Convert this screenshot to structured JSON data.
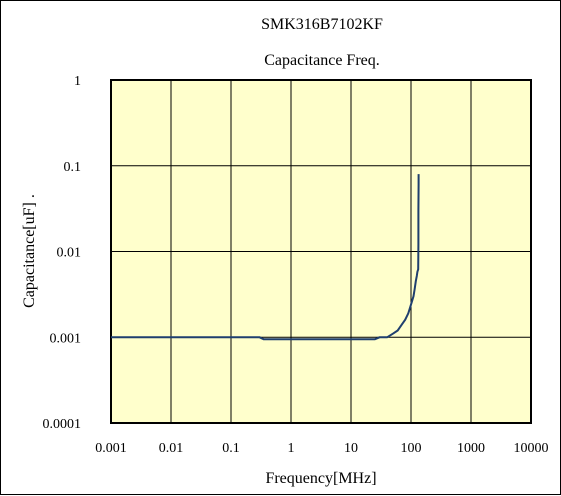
{
  "chart_data": {
    "type": "line",
    "title": "SMK316B7102KF",
    "subtitle": "Capacitance Freq.",
    "xlabel": "Frequency[MHz]",
    "ylabel": "Capacitance[uF] .",
    "x_scale": "log",
    "y_scale": "log",
    "xlim": [
      0.001,
      10000
    ],
    "ylim": [
      0.0001,
      1
    ],
    "x_ticks": [
      "0.001",
      "0.01",
      "0.1",
      "1",
      "10",
      "100",
      "1000",
      "10000"
    ],
    "y_ticks": [
      "1",
      "0.1",
      "0.01",
      "0.001",
      "0.0001"
    ],
    "grid": true,
    "legend": "none",
    "colors": {
      "plot_background": "#FFFFCC",
      "series_line": "#1F3F6E",
      "grid": "#000000"
    },
    "series": [
      {
        "x": [
          0.001,
          0.01,
          0.1,
          0.3,
          0.35,
          1,
          5,
          10,
          25,
          30,
          40,
          50,
          60,
          70,
          80,
          90,
          100,
          110,
          115,
          120,
          125,
          128,
          130,
          132,
          133,
          133,
          134,
          134
        ],
        "y": [
          0.001,
          0.001,
          0.001,
          0.001,
          0.00095,
          0.00095,
          0.00095,
          0.00095,
          0.00095,
          0.001,
          0.001,
          0.0011,
          0.0012,
          0.0014,
          0.0016,
          0.0019,
          0.0024,
          0.003,
          0.0036,
          0.0045,
          0.0052,
          0.0058,
          0.006,
          0.0062,
          0.012,
          0.03,
          0.06,
          0.08
        ]
      }
    ]
  }
}
